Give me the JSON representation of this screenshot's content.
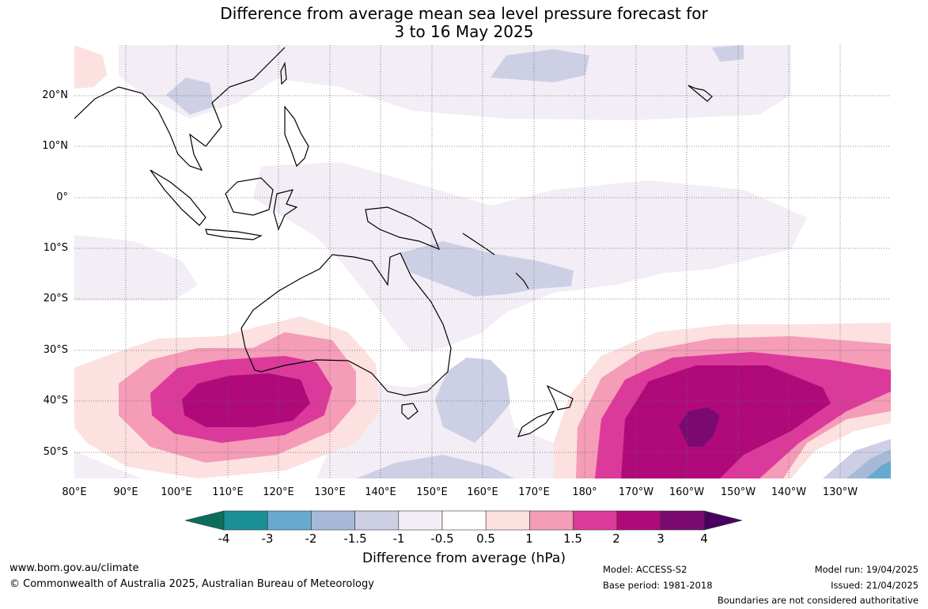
{
  "title": {
    "line1": "Difference from average mean sea level pressure forecast for",
    "line2": "3 to 16 May 2025"
  },
  "axes": {
    "lat_labels": [
      "20°N",
      "10°N",
      "0°",
      "10°S",
      "20°S",
      "30°S",
      "40°S",
      "50°S"
    ],
    "lon_labels": [
      "80°E",
      "90°E",
      "100°E",
      "110°E",
      "120°E",
      "130°E",
      "140°E",
      "150°E",
      "160°E",
      "170°E",
      "180°",
      "170°W",
      "160°W",
      "150°W",
      "140°W",
      "130°W"
    ]
  },
  "colorbar": {
    "title": "Difference from average (hPa)",
    "ticks": [
      "-4",
      "-3",
      "-2",
      "-1.5",
      "-1",
      "-0.5",
      "0.5",
      "1",
      "1.5",
      "2",
      "3",
      "4"
    ],
    "colors": [
      "#0b6e5a",
      "#1a9096",
      "#68a9d0",
      "#a6b9d8",
      "#cdd0e4",
      "#f3edf6",
      "#ffffff",
      "#fde0e0",
      "#f49cb8",
      "#dc3a9a",
      "#b00a7a",
      "#7a0a70",
      "#4a0060"
    ]
  },
  "map_colors": {
    "ocean": "#ffffff",
    "neg_light": "#f3edf6",
    "neg_mid": "#cdd0e4",
    "neg_strong": "#a6b9d8",
    "pos_1": "#fde0e0",
    "pos_2": "#f49cb8",
    "pos_3": "#dc3a9a",
    "pos_4": "#b00a7a",
    "pos_5": "#7a0a70",
    "coast": "#000000",
    "grid": "#666666"
  },
  "footer": {
    "website": "www.bom.gov.au/climate",
    "copyright": "© Commonwealth of Australia 2025, Australian Bureau of Meteorology",
    "model": "Model: ACCESS-S2",
    "base_period": "Base period: 1981-2018",
    "model_run": "Model run: 19/04/2025",
    "issued": "Issued: 21/04/2025",
    "disclaimer": "Boundaries are not considered authoritative"
  }
}
